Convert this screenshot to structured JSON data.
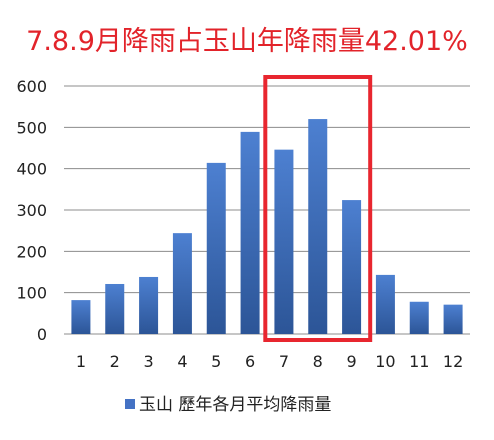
{
  "chart_data": {
    "type": "bar",
    "title": "7.8.9月降雨占玉山年降雨量42.01%",
    "categories": [
      "1",
      "2",
      "3",
      "4",
      "5",
      "6",
      "7",
      "8",
      "9",
      "10",
      "11",
      "12"
    ],
    "series": [
      {
        "name": "玉山 歷年各月平均降雨量",
        "values": [
          82,
          121,
          138,
          244,
          414,
          489,
          446,
          520,
          324,
          143,
          78,
          71
        ]
      }
    ],
    "yticks": [
      "0",
      "100",
      "200",
      "300",
      "400",
      "500",
      "600"
    ],
    "ylim": [
      0,
      600
    ],
    "grid": true,
    "legend": "bottom",
    "highlight": {
      "categories": [
        "7",
        "8",
        "9"
      ]
    },
    "colors": {
      "title": "#e2232a",
      "bar": "#4472c4",
      "bar_dark": "#2c5597",
      "highlight_box": "#e8262f",
      "grid": "#8c8c8c",
      "text": "#222222"
    }
  }
}
